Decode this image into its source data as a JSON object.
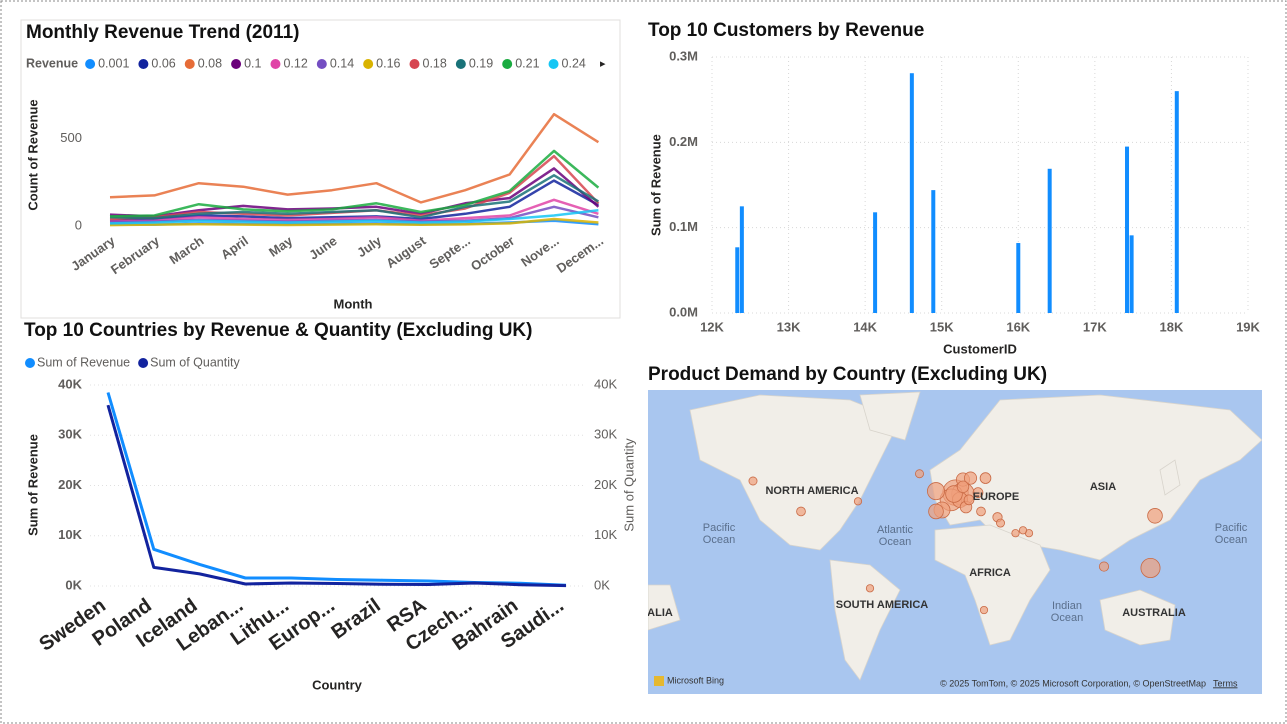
{
  "chart_data": [
    {
      "type": "line",
      "title": "Monthly Revenue Trend (2011)",
      "legend_title": "Revenue",
      "x_label": "Month",
      "y_label": "Count of Revenue",
      "categories": [
        "January",
        "February",
        "March",
        "April",
        "May",
        "June",
        "July",
        "August",
        "Septe...",
        "October",
        "Nove...",
        "Decem..."
      ],
      "ylim": [
        0,
        750
      ],
      "yticks": [
        0,
        500
      ],
      "grid": false,
      "series": [
        {
          "name": "0.001",
          "color": "#118DFF",
          "values": [
            10,
            8,
            15,
            12,
            10,
            12,
            15,
            10,
            12,
            20,
            30,
            10
          ]
        },
        {
          "name": "0.06",
          "color": "#12239E",
          "values": [
            30,
            40,
            60,
            55,
            45,
            50,
            55,
            40,
            70,
            110,
            260,
            120
          ]
        },
        {
          "name": "0.08",
          "color": "#E66C37",
          "values": [
            165,
            175,
            245,
            225,
            180,
            205,
            245,
            135,
            205,
            295,
            640,
            480
          ]
        },
        {
          "name": "0.1",
          "color": "#6B007B",
          "values": [
            65,
            55,
            90,
            115,
            95,
            100,
            110,
            70,
            130,
            160,
            330,
            110
          ]
        },
        {
          "name": "0.12",
          "color": "#E044A7",
          "values": [
            25,
            30,
            50,
            40,
            35,
            40,
            50,
            30,
            45,
            60,
            150,
            70
          ]
        },
        {
          "name": "0.14",
          "color": "#744EC2",
          "values": [
            20,
            25,
            35,
            30,
            25,
            30,
            35,
            25,
            30,
            45,
            110,
            50
          ]
        },
        {
          "name": "0.16",
          "color": "#D9B300",
          "values": [
            5,
            8,
            10,
            8,
            6,
            8,
            10,
            7,
            9,
            15,
            40,
            20
          ]
        },
        {
          "name": "0.18",
          "color": "#D64550",
          "values": [
            40,
            50,
            80,
            70,
            60,
            75,
            90,
            60,
            100,
            190,
            400,
            130
          ]
        },
        {
          "name": "0.19",
          "color": "#197278",
          "values": [
            50,
            45,
            70,
            80,
            70,
            80,
            90,
            50,
            110,
            140,
            290,
            140
          ]
        },
        {
          "name": "0.21",
          "color": "#1AAB40",
          "values": [
            55,
            60,
            125,
            95,
            85,
            95,
            130,
            80,
            120,
            200,
            430,
            220
          ]
        },
        {
          "name": "0.24",
          "color": "#15C6F4",
          "values": [
            15,
            20,
            30,
            25,
            20,
            25,
            30,
            20,
            25,
            40,
            60,
            90
          ]
        }
      ]
    },
    {
      "type": "bar",
      "title": "Top 10 Customers by Revenue",
      "x_label": "CustomerID",
      "y_label": "Sum of Revenue",
      "x": [
        12330,
        12390,
        14130,
        14610,
        14890,
        16000,
        16410,
        17420,
        17480,
        18070
      ],
      "values": [
        77000,
        125000,
        118000,
        281000,
        144000,
        82000,
        169000,
        195000,
        91000,
        260000
      ],
      "color": "#118DFF",
      "grid": true,
      "xlim": [
        12000,
        19000
      ],
      "xticks": [
        {
          "value": 12000,
          "label": "12K"
        },
        {
          "value": 13000,
          "label": "13K"
        },
        {
          "value": 14000,
          "label": "14K"
        },
        {
          "value": 15000,
          "label": "15K"
        },
        {
          "value": 16000,
          "label": "16K"
        },
        {
          "value": 17000,
          "label": "17K"
        },
        {
          "value": 18000,
          "label": "18K"
        },
        {
          "value": 19000,
          "label": "19K"
        }
      ],
      "ylim": [
        0,
        300000
      ],
      "yticks": [
        {
          "value": 0,
          "label": "0.0M"
        },
        {
          "value": 100000,
          "label": "0.1M"
        },
        {
          "value": 200000,
          "label": "0.2M"
        },
        {
          "value": 300000,
          "label": "0.3M"
        }
      ]
    },
    {
      "type": "dualline",
      "title": "Top 10 Countries by Revenue & Quantity (Excluding UK)",
      "x_label": "Country",
      "y_label": "Sum of Revenue",
      "y2_label": "Sum of Quantity",
      "grid": true,
      "categories": [
        "Sweden",
        "Poland",
        "Iceland",
        "Leban...",
        "Lithu...",
        "Europ...",
        "Brazil",
        "RSA",
        "Czech...",
        "Bahrain",
        "Saudi..."
      ],
      "ylim": [
        0,
        40000
      ],
      "yticks": [
        {
          "value": 0,
          "label": "0K"
        },
        {
          "value": 10000,
          "label": "10K"
        },
        {
          "value": 20000,
          "label": "20K"
        },
        {
          "value": 30000,
          "label": "30K"
        },
        {
          "value": 40000,
          "label": "40K"
        }
      ],
      "y2lim": [
        0,
        40000
      ],
      "y2ticks": [
        {
          "value": 0,
          "label": "0K"
        },
        {
          "value": 10000,
          "label": "10K"
        },
        {
          "value": 20000,
          "label": "20K"
        },
        {
          "value": 30000,
          "label": "30K"
        },
        {
          "value": 40000,
          "label": "40K"
        }
      ],
      "series": [
        {
          "name": "Sum of Revenue",
          "color": "#118DFF",
          "values": [
            38500,
            7300,
            4300,
            1600,
            1600,
            1300,
            1150,
            1000,
            700,
            550,
            130
          ]
        },
        {
          "name": "Sum of Quantity",
          "color": "#12239E",
          "axis": "y2",
          "values": [
            36000,
            3700,
            2400,
            400,
            600,
            500,
            350,
            300,
            600,
            250,
            80
          ]
        }
      ]
    },
    {
      "type": "map",
      "title": "Product Demand by Country (Excluding UK)",
      "labels": [
        "NORTH AMERICA",
        "EUROPE",
        "ASIA",
        "Pacific",
        "Ocean",
        "Atlantic",
        "Ocean",
        "Pacific",
        "Ocean",
        "AFRICA",
        "SOUTH AMERICA",
        "Indian",
        "Ocean",
        "AUSTRALIA",
        "ALIA"
      ],
      "attribution": "© 2025 TomTom, © 2025 Microsoft Corporation, © OpenStreetMap",
      "terms": "Terms",
      "provider": "Microsoft Bing",
      "color": "#f0a07c",
      "lon": [
        5,
        10,
        2,
        -8,
        -4,
        -8,
        8,
        4,
        10,
        15,
        25,
        10,
        12,
        14,
        20,
        33,
        22,
        35,
        138,
        135,
        104,
        24,
        -52,
        -98,
        -130,
        -19,
        54,
        50,
        45,
        -60
      ],
      "lat": [
        52,
        51,
        47,
        53,
        40,
        39,
        47,
        51,
        61,
        62,
        62,
        56,
        42,
        47,
        52,
        35,
        39,
        31,
        36,
        0,
        1,
        -29,
        -14,
        39,
        60,
        65,
        24,
        26,
        24,
        46
      ],
      "size": [
        80,
        60,
        55,
        30,
        25,
        20,
        22,
        28,
        15,
        12,
        8,
        10,
        10,
        6,
        6,
        5,
        4,
        3,
        20,
        40,
        5,
        2,
        2,
        4,
        3,
        3,
        2,
        2,
        2,
        2
      ]
    }
  ]
}
